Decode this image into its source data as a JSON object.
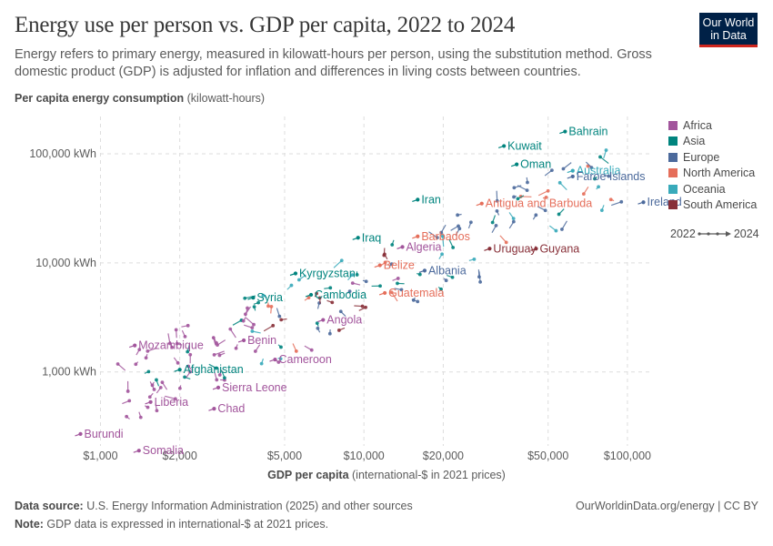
{
  "header": {
    "title": "Energy use per person vs. GDP per capita, 2022 to 2024",
    "subtitle": "Energy refers to primary energy, measured in kilowatt-hours per person, using the substitution method. Gross domestic product (GDP) is adjusted for inflation and differences in living costs between countries.",
    "logo_line1": "Our World",
    "logo_line2": "in Data"
  },
  "axes": {
    "y_label_bold": "Per capita energy consumption",
    "y_label_unit": " (kilowatt-hours)",
    "x_label_bold": "GDP per capita",
    "x_label_unit": " (international-$ in 2021 prices)"
  },
  "legend": {
    "items": [
      {
        "label": "Africa",
        "color": "#a2559c"
      },
      {
        "label": "Asia",
        "color": "#00847e"
      },
      {
        "label": "Europe",
        "color": "#4c6a9c"
      },
      {
        "label": "North America",
        "color": "#e56e5a"
      },
      {
        "label": "Oceania",
        "color": "#38aaba"
      },
      {
        "label": "South America",
        "color": "#883039"
      }
    ],
    "time_start": "2022",
    "time_end": "2024"
  },
  "footer": {
    "source_label": "Data source:",
    "source_text": " U.S. Energy Information Administration (2025) and other sources",
    "note_label": "Note:",
    "note_text": " GDP data is expressed in international-$ at 2021 prices.",
    "credit": "OurWorldinData.org/energy | CC BY"
  },
  "chart_data": {
    "type": "scatter",
    "x_scale": "log",
    "y_scale": "log",
    "xlim": [
      850,
      125000
    ],
    "ylim": [
      180,
      220000
    ],
    "x_ticks": [
      {
        "value": 1000,
        "label": "$1,000"
      },
      {
        "value": 2000,
        "label": "$2,000"
      },
      {
        "value": 5000,
        "label": "$5,000"
      },
      {
        "value": 10000,
        "label": "$10,000"
      },
      {
        "value": 20000,
        "label": "$20,000"
      },
      {
        "value": 50000,
        "label": "$50,000"
      },
      {
        "value": 100000,
        "label": "$100,000"
      }
    ],
    "y_ticks": [
      {
        "value": 1000,
        "label": "1,000 kWh"
      },
      {
        "value": 10000,
        "label": "10,000 kWh"
      },
      {
        "value": 100000,
        "label": "100,000 kWh"
      }
    ],
    "grid": true,
    "legend_position": "right",
    "labeled_points": [
      {
        "name": "Bahrain",
        "region": "Asia",
        "x": 58000,
        "y": 160000
      },
      {
        "name": "Kuwait",
        "region": "Asia",
        "x": 34000,
        "y": 118000
      },
      {
        "name": "Oman",
        "region": "Asia",
        "x": 38000,
        "y": 80000
      },
      {
        "name": "Australia",
        "region": "Oceania",
        "x": 62000,
        "y": 70000
      },
      {
        "name": "Faroe Islands",
        "region": "Europe",
        "x": 62000,
        "y": 62000
      },
      {
        "name": "Iran",
        "region": "Asia",
        "x": 16000,
        "y": 38000
      },
      {
        "name": "Antigua and Barbuda",
        "region": "North America",
        "x": 28000,
        "y": 35000
      },
      {
        "name": "Ireland",
        "region": "Europe",
        "x": 115000,
        "y": 36000
      },
      {
        "name": "Barbados",
        "region": "North America",
        "x": 16000,
        "y": 17500
      },
      {
        "name": "Iraq",
        "region": "Asia",
        "x": 9500,
        "y": 17000
      },
      {
        "name": "Algeria",
        "region": "Africa",
        "x": 14000,
        "y": 14000
      },
      {
        "name": "Uruguay",
        "region": "South America",
        "x": 30000,
        "y": 13500
      },
      {
        "name": "Guyana",
        "region": "South America",
        "x": 45000,
        "y": 13500
      },
      {
        "name": "Belize",
        "region": "North America",
        "x": 11500,
        "y": 9500
      },
      {
        "name": "Albania",
        "region": "Europe",
        "x": 17000,
        "y": 8500
      },
      {
        "name": "Kyrgyzstan",
        "region": "Asia",
        "x": 5500,
        "y": 8000
      },
      {
        "name": "Guatemala",
        "region": "North America",
        "x": 12000,
        "y": 5300
      },
      {
        "name": "Cambodia",
        "region": "Asia",
        "x": 6300,
        "y": 5100
      },
      {
        "name": "Syria",
        "region": "Asia",
        "x": 3800,
        "y": 4800
      },
      {
        "name": "Angola",
        "region": "Africa",
        "x": 7000,
        "y": 3000
      },
      {
        "name": "Benin",
        "region": "Africa",
        "x": 3500,
        "y": 1950
      },
      {
        "name": "Mozambique",
        "region": "Africa",
        "x": 1350,
        "y": 1750
      },
      {
        "name": "Cameroon",
        "region": "Africa",
        "x": 4600,
        "y": 1300
      },
      {
        "name": "Afghanistan",
        "region": "Asia",
        "x": 2000,
        "y": 1050
      },
      {
        "name": "Sierra Leone",
        "region": "Africa",
        "x": 2800,
        "y": 720
      },
      {
        "name": "Liberia",
        "region": "Africa",
        "x": 1550,
        "y": 530
      },
      {
        "name": "Chad",
        "region": "Africa",
        "x": 2700,
        "y": 460
      },
      {
        "name": "Burundi",
        "region": "Africa",
        "x": 840,
        "y": 270
      },
      {
        "name": "Somalia",
        "region": "Africa",
        "x": 1400,
        "y": 190
      }
    ]
  }
}
